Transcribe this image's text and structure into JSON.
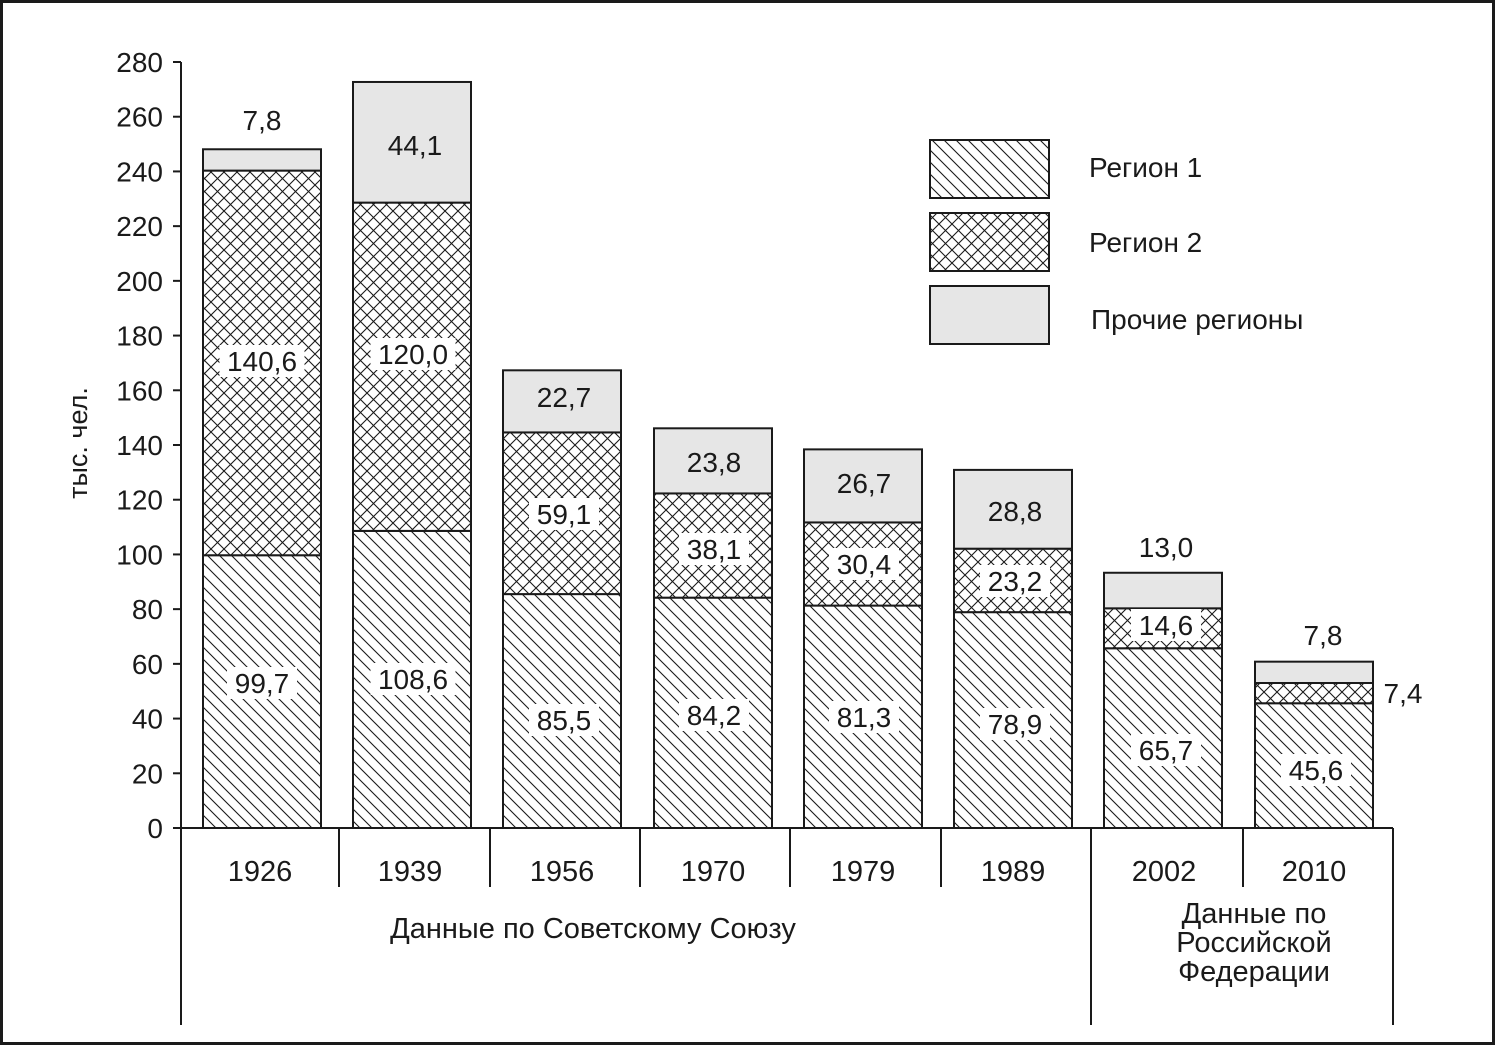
{
  "chart_data": {
    "type": "bar",
    "stacked": true,
    "ylabel": "тыс. чел.",
    "ylim": [
      0,
      280
    ],
    "yticks": [
      "0",
      "20",
      "40",
      "60",
      "80",
      "100",
      "120",
      "140",
      "160",
      "180",
      "200",
      "220",
      "240",
      "260",
      "280"
    ],
    "categories": [
      "1926",
      "1939",
      "1956",
      "1970",
      "1979",
      "1989",
      "2002",
      "2010"
    ],
    "series": [
      {
        "name": "Регион 1",
        "pattern": "diagonal-hatch",
        "values": [
          99.7,
          108.6,
          85.5,
          84.2,
          81.3,
          78.9,
          65.7,
          45.6
        ],
        "labels": [
          "99,7",
          "108,6",
          "85,5",
          "84,2",
          "81,3",
          "78,9",
          "65,7",
          "45,6"
        ]
      },
      {
        "name": "Регион 2",
        "pattern": "cross-hatch",
        "values": [
          140.6,
          120.0,
          59.1,
          38.1,
          30.4,
          23.2,
          14.6,
          7.4
        ],
        "labels": [
          "140,6",
          "120,0",
          "59,1",
          "38,1",
          "30,4",
          "23,2",
          "14,6",
          "7,4"
        ]
      },
      {
        "name": "Прочие регионы",
        "pattern": "solid-light-gray",
        "values": [
          7.8,
          44.1,
          22.7,
          23.8,
          26.7,
          28.8,
          13.0,
          7.8
        ],
        "labels": [
          "7,8",
          "44,1",
          "22,7",
          "23,8",
          "26,7",
          "28,8",
          "13,0",
          "7,8"
        ]
      }
    ],
    "groups": [
      {
        "label": "Данные по Советскому Союзу",
        "categories": [
          "1926",
          "1939",
          "1956",
          "1970",
          "1979",
          "1989"
        ]
      },
      {
        "label_lines": [
          "Данные по",
          "Российской",
          "Федерации"
        ],
        "categories": [
          "2002",
          "2010"
        ]
      }
    ],
    "legend": {
      "position": "top-right",
      "items": [
        "Регион 1",
        "Регион 2",
        "Прочие регионы"
      ]
    },
    "grid": false,
    "colors": {
      "ink": "#1a1a1a",
      "other_fill": "#e6e6e6",
      "background": "#ffffff"
    }
  }
}
